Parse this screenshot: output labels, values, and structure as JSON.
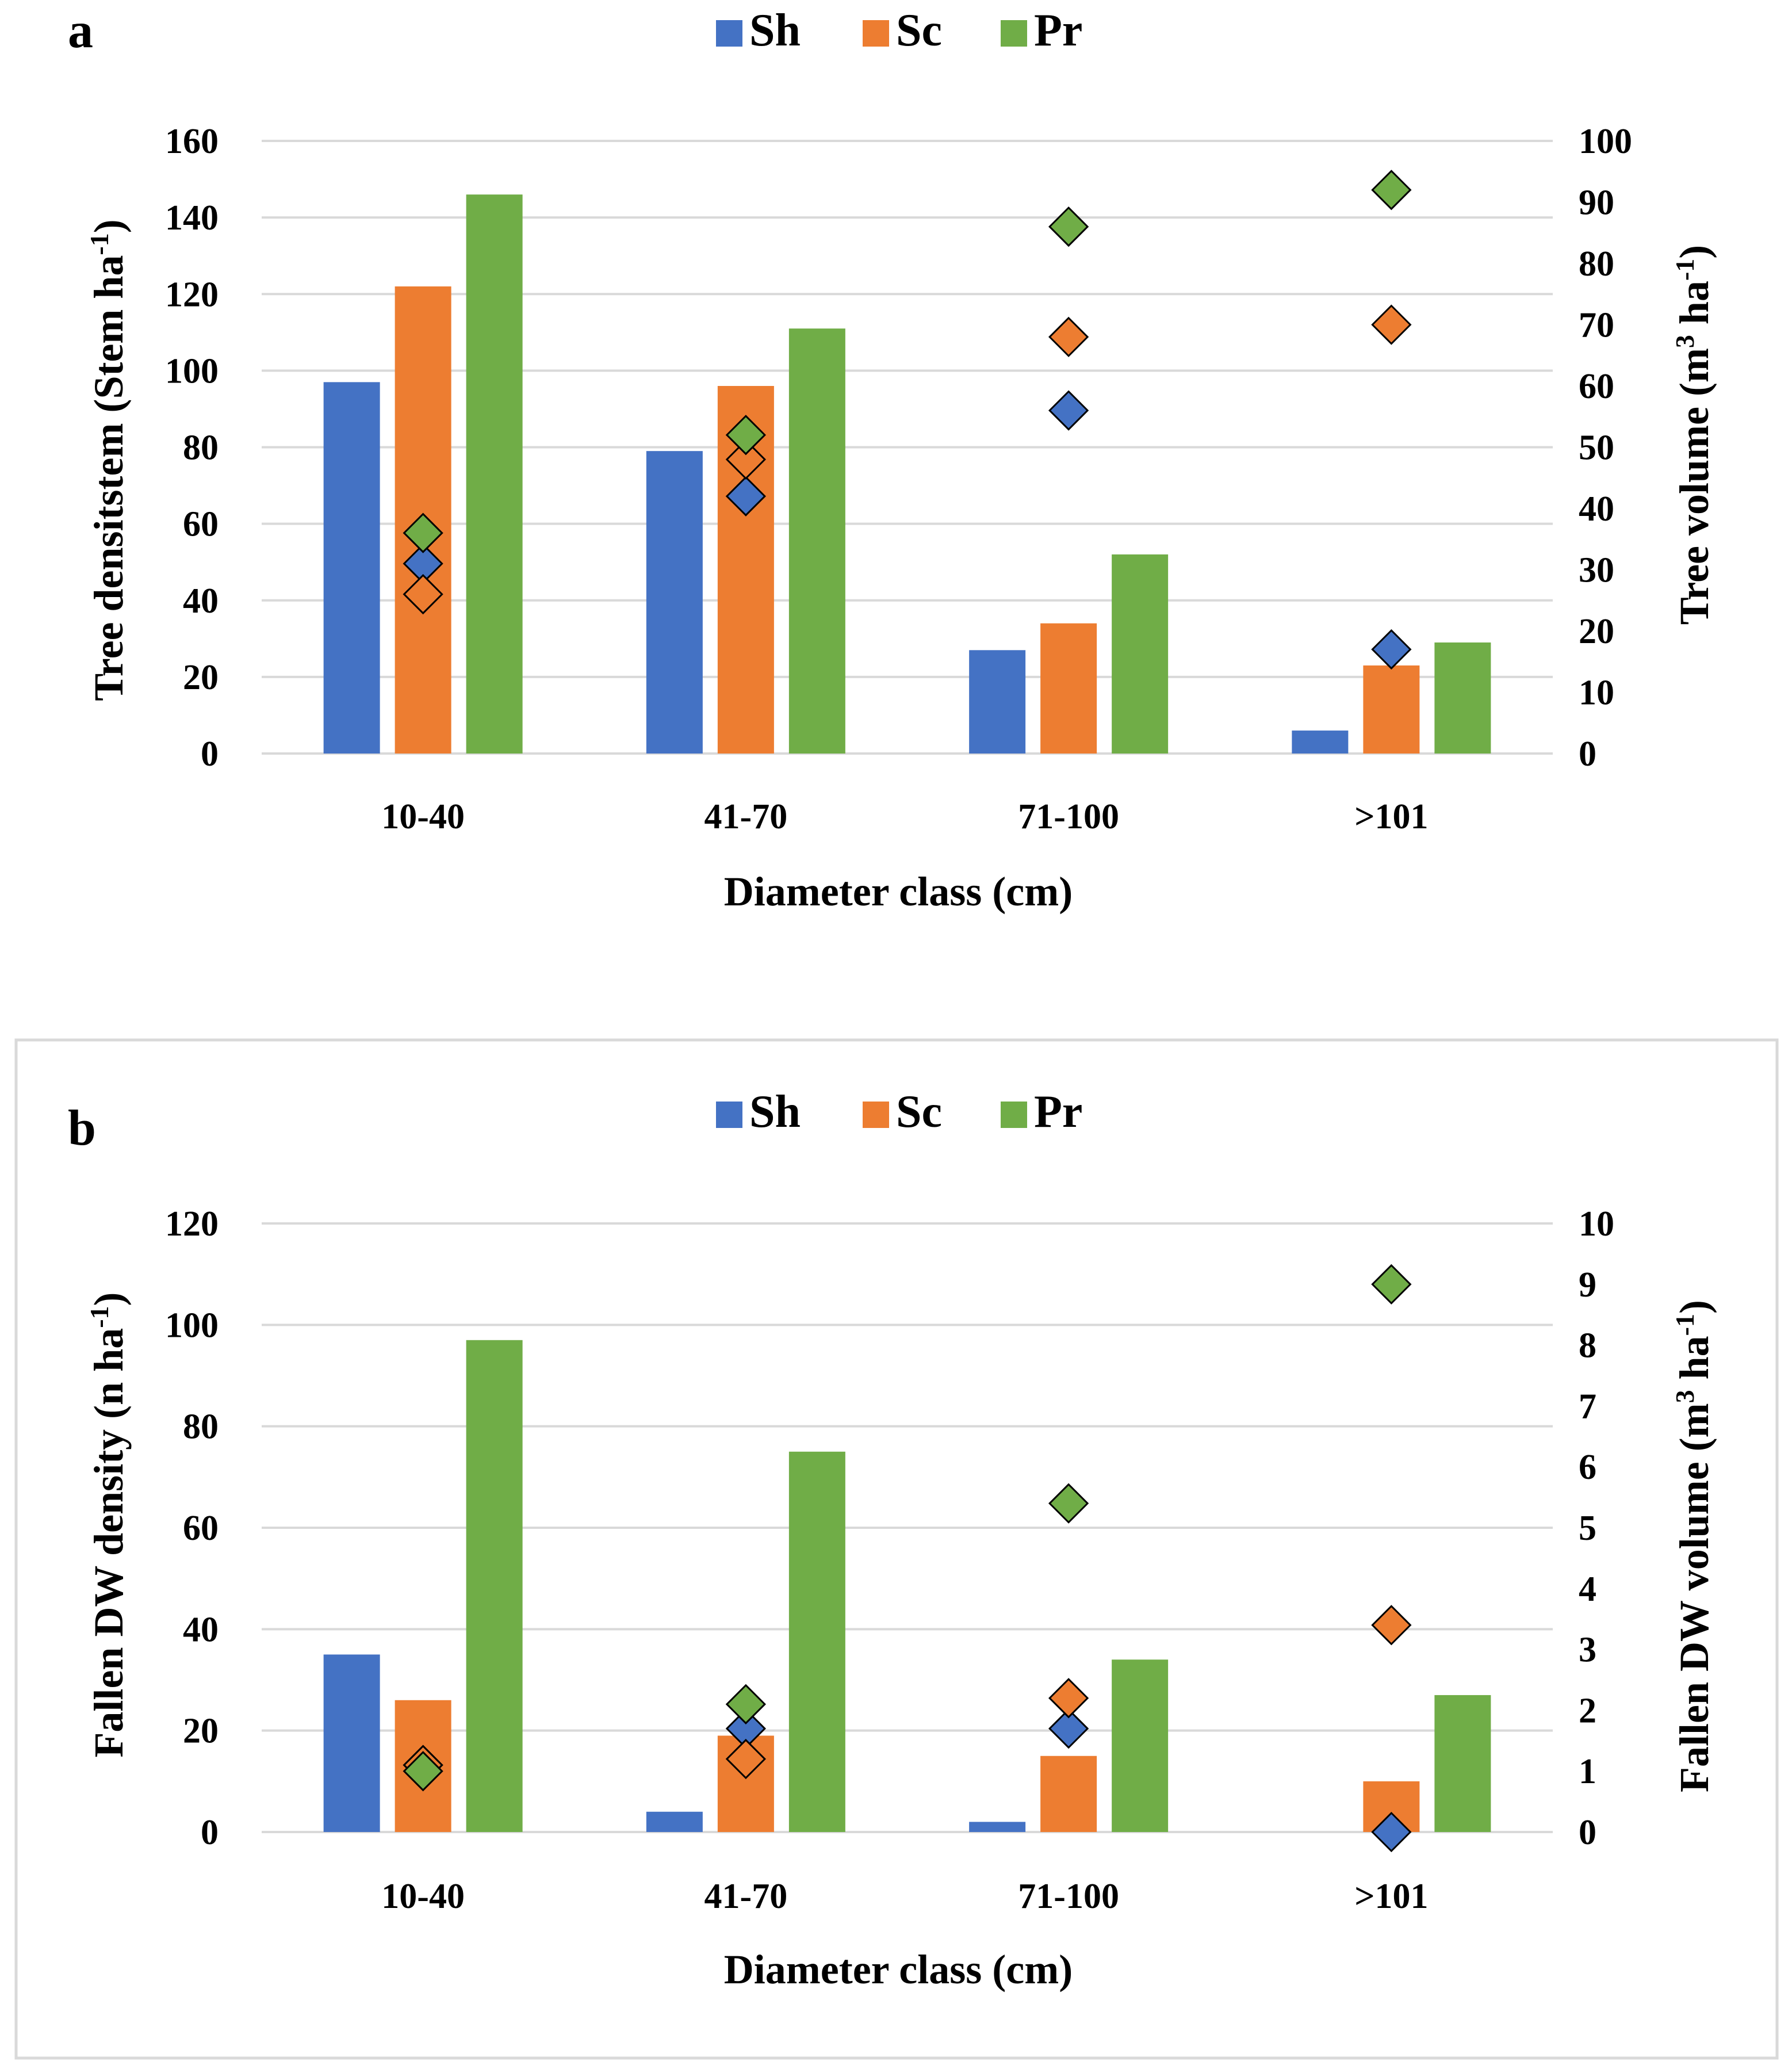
{
  "chart_data": [
    {
      "panel": "a",
      "type": "bar",
      "categories": [
        "10-40",
        "41-70",
        "71-100",
        ">101"
      ],
      "legend": [
        "Sh",
        "Sc",
        "Pr"
      ],
      "series": [
        {
          "name": "Sh",
          "color": "#4472c4",
          "values": [
            97,
            79,
            27,
            6
          ]
        },
        {
          "name": "Sc",
          "color": "#ed7d31",
          "values": [
            122,
            96,
            34,
            23
          ]
        },
        {
          "name": "Pr",
          "color": "#70ad47",
          "values": [
            146,
            111,
            52,
            29
          ]
        }
      ],
      "secondary_series": [
        {
          "name": "Sh",
          "color": "#4472c4",
          "values": [
            31,
            42,
            56,
            17
          ]
        },
        {
          "name": "Sc",
          "color": "#ed7d31",
          "values": [
            26,
            48,
            68,
            70
          ]
        },
        {
          "name": "Pr",
          "color": "#70ad47",
          "values": [
            36,
            52,
            86,
            92
          ]
        }
      ],
      "xlabel": "Diameter class (cm)",
      "ylabel": "Tree densitstem (Stem ha",
      "ylabel_sup": "-1",
      "ylabel_end": ")",
      "y2label": "Tree volume (m",
      "y2label_sup1": "3",
      "y2label_mid": " ha",
      "y2label_sup2": "-1",
      "y2label_end": ")",
      "ylim": [
        0,
        160
      ],
      "yticks": [
        0,
        20,
        40,
        60,
        80,
        100,
        120,
        140,
        160
      ],
      "y2lim": [
        0,
        100
      ],
      "y2ticks": [
        0,
        10,
        20,
        30,
        40,
        50,
        60,
        70,
        80,
        90,
        100
      ],
      "grid": true,
      "legend_position": "top"
    },
    {
      "panel": "b",
      "type": "bar",
      "categories": [
        "10-40",
        "41-70",
        "71-100",
        ">101"
      ],
      "legend": [
        "Sh",
        "Sc",
        "Pr"
      ],
      "series": [
        {
          "name": "Sh",
          "color": "#4472c4",
          "values": [
            35,
            4,
            2,
            0
          ]
        },
        {
          "name": "Sc",
          "color": "#ed7d31",
          "values": [
            26,
            19,
            15,
            10
          ]
        },
        {
          "name": "Pr",
          "color": "#70ad47",
          "values": [
            97,
            75,
            34,
            27
          ]
        }
      ],
      "secondary_series": [
        {
          "name": "Sh",
          "color": "#4472c4",
          "values": [
            1.1,
            1.7,
            1.7,
            0.0
          ]
        },
        {
          "name": "Sc",
          "color": "#ed7d31",
          "values": [
            1.1,
            1.2,
            2.2,
            3.4
          ]
        },
        {
          "name": "Pr",
          "color": "#70ad47",
          "values": [
            1.0,
            2.1,
            5.4,
            9.0
          ]
        }
      ],
      "xlabel": "Diameter class (cm)",
      "ylabel": "Fallen DW density (n ha",
      "ylabel_sup": "-1",
      "ylabel_end": ")",
      "y2label": "Fallen DW volume (m",
      "y2label_sup1": "3",
      "y2label_mid": " ha",
      "y2label_sup2": "-1",
      "y2label_end": ")",
      "ylim": [
        0,
        120
      ],
      "yticks": [
        0,
        20,
        40,
        60,
        80,
        100,
        120
      ],
      "y2lim": [
        0,
        10
      ],
      "y2ticks": [
        0,
        1,
        2,
        3,
        4,
        5,
        6,
        7,
        8,
        9,
        10
      ],
      "grid": true,
      "legend_position": "top"
    }
  ]
}
